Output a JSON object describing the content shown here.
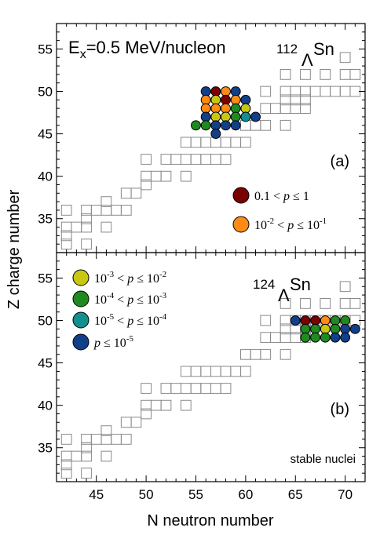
{
  "chart_data": {
    "type": "scatter",
    "xlabel": "N neutron number",
    "ylabel": "Z charge number",
    "xticks": [
      "45",
      "50",
      "55",
      "60",
      "65",
      "70"
    ],
    "yticks": [
      "35",
      "40",
      "45",
      "50",
      "55"
    ],
    "xlim": [
      41,
      72
    ],
    "ylim": [
      31,
      58
    ],
    "panels": [
      {
        "title_prefix": "E",
        "title_sub": "x",
        "title_rest": "=0.5 MeV/nucleon",
        "nucleus_mass": "112",
        "nucleus_sub": "Λ",
        "nucleus_sym": "Sn",
        "panel_label": "(a)",
        "points": [
          [
            56,
            50,
            "blue"
          ],
          [
            57,
            50,
            "red"
          ],
          [
            58,
            50,
            "orange"
          ],
          [
            59,
            50,
            "blue"
          ],
          [
            56,
            49,
            "orange"
          ],
          [
            57,
            49,
            "yellow"
          ],
          [
            58,
            49,
            "red"
          ],
          [
            59,
            49,
            "orange"
          ],
          [
            60,
            49,
            "blue"
          ],
          [
            56,
            48,
            "orange"
          ],
          [
            57,
            48,
            "orange"
          ],
          [
            58,
            48,
            "orange"
          ],
          [
            59,
            48,
            "green"
          ],
          [
            60,
            48,
            "yellow"
          ],
          [
            56,
            47,
            "blue"
          ],
          [
            57,
            47,
            "yellow"
          ],
          [
            58,
            47,
            "yellow"
          ],
          [
            59,
            47,
            "green"
          ],
          [
            60,
            47,
            "teal"
          ],
          [
            61,
            47,
            "blue"
          ],
          [
            55,
            46,
            "green"
          ],
          [
            56,
            46,
            "green"
          ],
          [
            57,
            46,
            "blue"
          ],
          [
            58,
            46,
            "blue"
          ],
          [
            59,
            46,
            "blue"
          ],
          [
            57,
            45,
            "blue"
          ]
        ]
      },
      {
        "title_prefix": "",
        "title_sub": "",
        "title_rest": "",
        "nucleus_mass": "124",
        "nucleus_sub": "Λ",
        "nucleus_sym": "Sn",
        "panel_label": "(b)",
        "points": [
          [
            65,
            50,
            "blue"
          ],
          [
            66,
            50,
            "red"
          ],
          [
            67,
            50,
            "red"
          ],
          [
            68,
            50,
            "orange"
          ],
          [
            69,
            50,
            "green"
          ],
          [
            70,
            50,
            "green"
          ],
          [
            66,
            49,
            "green"
          ],
          [
            67,
            49,
            "green"
          ],
          [
            68,
            49,
            "yellow"
          ],
          [
            69,
            49,
            "green"
          ],
          [
            70,
            49,
            "blue"
          ],
          [
            71,
            49,
            "blue"
          ],
          [
            66,
            48,
            "green"
          ],
          [
            67,
            48,
            "green"
          ],
          [
            68,
            48,
            "green"
          ],
          [
            69,
            48,
            "blue"
          ],
          [
            70,
            48,
            "blue"
          ]
        ]
      }
    ],
    "stable_nuclei_label": "stable nuclei",
    "stable_nuclei": [
      [
        42,
        32
      ],
      [
        42,
        33
      ],
      [
        42,
        34
      ],
      [
        42,
        36
      ],
      [
        43,
        34
      ],
      [
        44,
        32
      ],
      [
        44,
        34
      ],
      [
        44,
        35
      ],
      [
        44,
        36
      ],
      [
        45,
        36
      ],
      [
        46,
        34
      ],
      [
        46,
        36
      ],
      [
        46,
        37
      ],
      [
        47,
        36
      ],
      [
        48,
        36
      ],
      [
        48,
        38
      ],
      [
        49,
        38
      ],
      [
        50,
        39
      ],
      [
        50,
        40
      ],
      [
        50,
        42
      ],
      [
        51,
        40
      ],
      [
        52,
        40
      ],
      [
        52,
        42
      ],
      [
        53,
        42
      ],
      [
        54,
        40
      ],
      [
        54,
        42
      ],
      [
        54,
        44
      ],
      [
        55,
        42
      ],
      [
        55,
        44
      ],
      [
        56,
        42
      ],
      [
        56,
        44
      ],
      [
        57,
        42
      ],
      [
        57,
        44
      ],
      [
        58,
        42
      ],
      [
        58,
        44
      ],
      [
        59,
        44
      ],
      [
        60,
        44
      ],
      [
        60,
        46
      ],
      [
        61,
        46
      ],
      [
        62,
        46
      ],
      [
        62,
        48
      ],
      [
        63,
        48
      ],
      [
        64,
        46
      ],
      [
        64,
        48
      ],
      [
        64,
        49
      ],
      [
        64,
        50
      ],
      [
        65,
        48
      ],
      [
        65,
        49
      ],
      [
        65,
        50
      ],
      [
        66,
        48
      ],
      [
        66,
        49
      ],
      [
        66,
        50
      ],
      [
        67,
        50
      ],
      [
        68,
        50
      ],
      [
        69,
        50
      ],
      [
        70,
        50
      ],
      [
        70,
        52
      ],
      [
        71,
        50
      ],
      [
        71,
        52
      ],
      [
        70,
        54
      ],
      [
        68,
        52
      ],
      [
        66,
        52
      ],
      [
        64,
        52
      ],
      [
        62,
        50
      ]
    ],
    "legend": [
      {
        "color": "#7b0000",
        "key": "red",
        "lo": "0.1",
        "lo_exp": "",
        "op1": " < ",
        "var": "p",
        "op2": " ≤ ",
        "hi": "1",
        "hi_exp": ""
      },
      {
        "color": "#ff8a14",
        "key": "orange",
        "lo": "10",
        "lo_exp": "-2",
        "op1": " < ",
        "var": "p",
        "op2": " ≤ ",
        "hi": "10",
        "hi_exp": "-1"
      },
      {
        "color": "#c8c814",
        "key": "yellow",
        "lo": "10",
        "lo_exp": "-3",
        "op1": " < ",
        "var": "p",
        "op2": " ≤ ",
        "hi": "10",
        "hi_exp": "-2"
      },
      {
        "color": "#1f8a1f",
        "key": "green",
        "lo": "10",
        "lo_exp": "-4",
        "op1": " < ",
        "var": "p",
        "op2": " ≤ ",
        "hi": "10",
        "hi_exp": "-3"
      },
      {
        "color": "#129090",
        "key": "teal",
        "lo": "10",
        "lo_exp": "-5",
        "op1": " < ",
        "var": "p",
        "op2": " ≤ ",
        "hi": "10",
        "hi_exp": "-4"
      },
      {
        "color": "#123f8a",
        "key": "blue",
        "lo": "",
        "lo_exp": "",
        "op1": "",
        "var": "p",
        "op2": " ≤ ",
        "hi": "10",
        "hi_exp": "-5"
      }
    ]
  }
}
